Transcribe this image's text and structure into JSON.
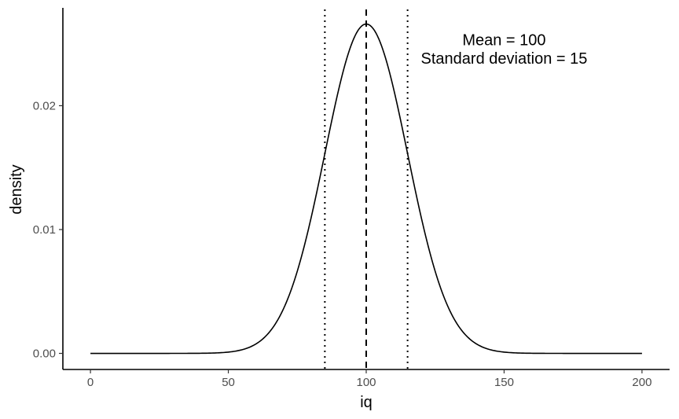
{
  "chart_data": {
    "type": "line",
    "title": "",
    "xlabel": "iq",
    "ylabel": "density",
    "xlim": [
      -10,
      210
    ],
    "ylim": [
      -0.0013,
      0.0279
    ],
    "x_ticks": [
      0,
      50,
      100,
      150,
      200
    ],
    "x_tick_labels": [
      "0",
      "50",
      "100",
      "150",
      "200"
    ],
    "y_ticks": [
      0.0,
      0.01,
      0.02
    ],
    "y_tick_labels": [
      "0.00",
      "0.01",
      "0.02"
    ],
    "grid": false,
    "legend": "none",
    "curve": {
      "distribution": "normal",
      "mean": 100,
      "sd": 15,
      "x_range": [
        0,
        200
      ],
      "color": "#000000"
    },
    "vlines": [
      {
        "x": 100,
        "style": "dashed"
      },
      {
        "x": 85,
        "style": "dotted"
      },
      {
        "x": 115,
        "style": "dotted"
      }
    ],
    "annotations": [
      {
        "text": "Mean = 100",
        "x": 150,
        "y": 0.0249
      },
      {
        "text": "Standard deviation = 15",
        "x": 150,
        "y": 0.0234
      }
    ]
  }
}
